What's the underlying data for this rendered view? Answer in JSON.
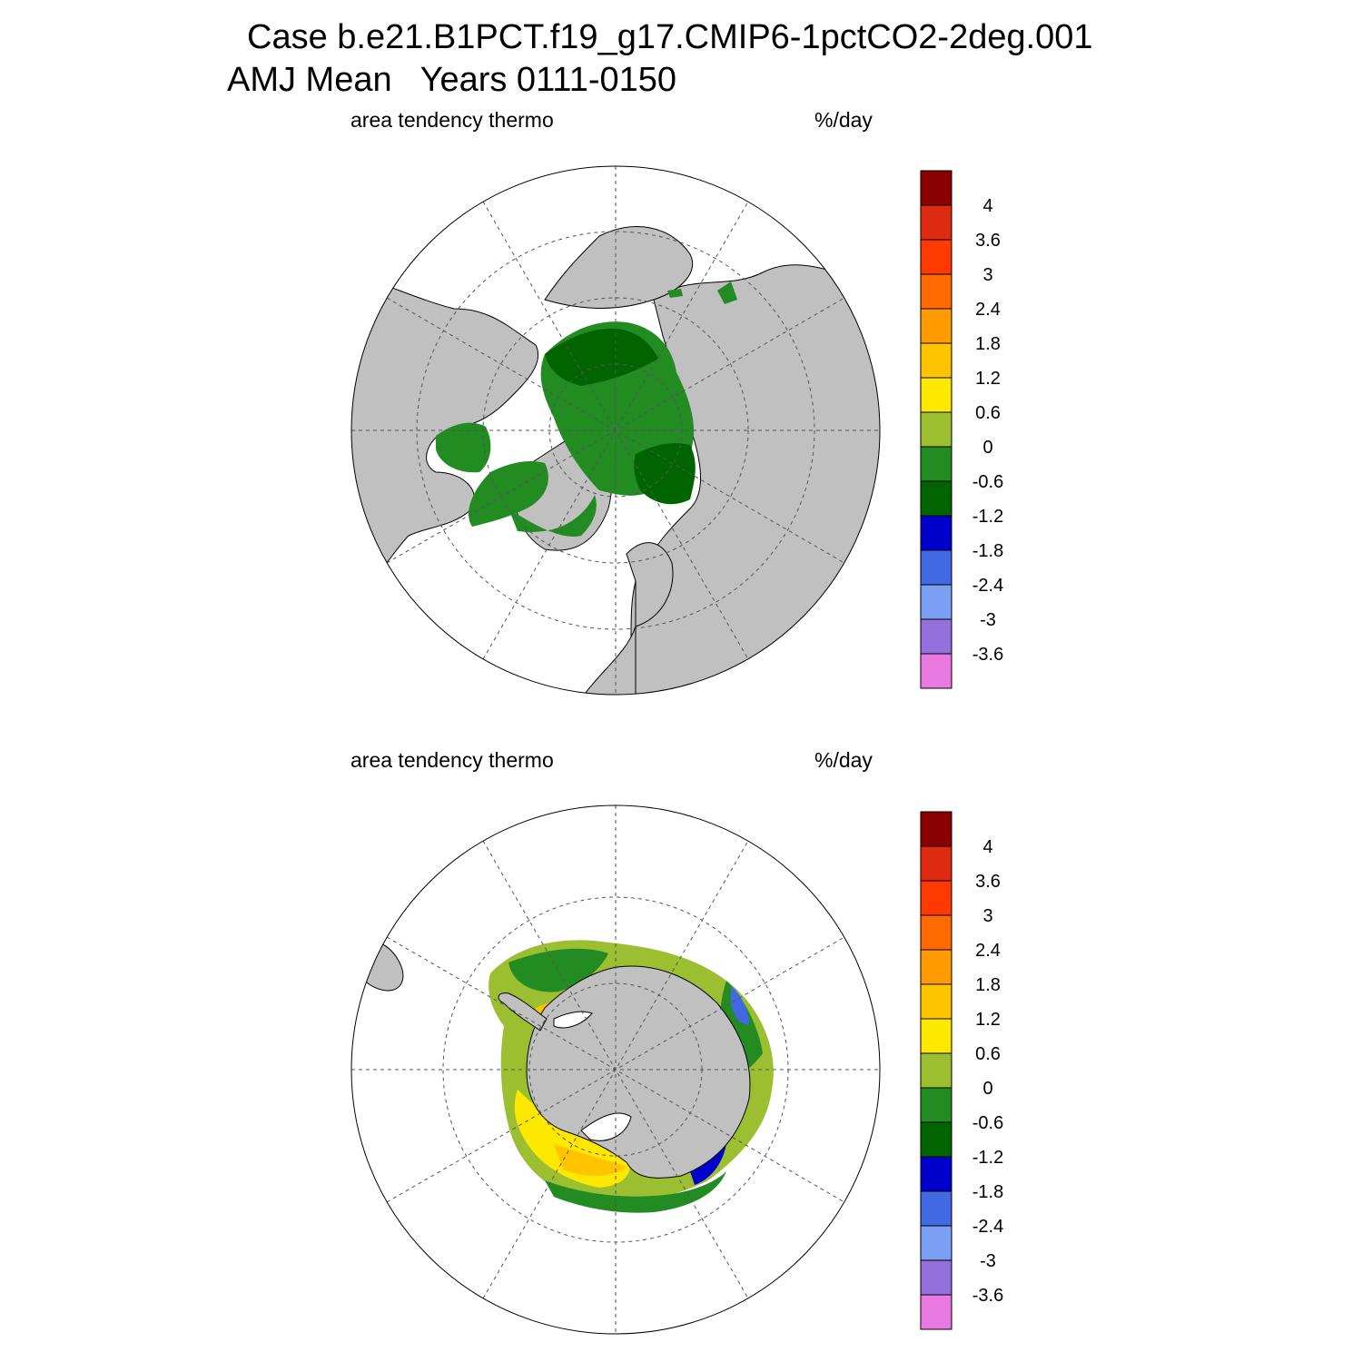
{
  "title": {
    "line1": "Case b.e21.B1PCT.f19_g17.CMIP6-1pctCO2-2deg.001",
    "line2": "AMJ Mean   Years 0111-0150"
  },
  "panels": [
    {
      "id": "north",
      "hemisphere": "Northern",
      "left_label": "area tendency thermo",
      "right_label": "%/day"
    },
    {
      "id": "south",
      "hemisphere": "Southern",
      "left_label": "area tendency thermo",
      "right_label": "%/day"
    }
  ],
  "colorbar": {
    "levels": [
      "4",
      "3.6",
      "3",
      "2.4",
      "1.8",
      "1.2",
      "0.6",
      "0",
      "-0.6",
      "-1.2",
      "-1.8",
      "-2.4",
      "-3",
      "-3.6"
    ],
    "colors": [
      "#8b0000",
      "#dd2a10",
      "#ff3a00",
      "#ff6a00",
      "#ff9a00",
      "#ffc400",
      "#ffe800",
      "#9bbf30",
      "#228b22",
      "#006400",
      "#0000cd",
      "#4169e1",
      "#7b9ff2",
      "#9370db",
      "#e879e0"
    ]
  },
  "colors": {
    "land": "#c0c0c0",
    "ocean": "#ffffff"
  }
}
